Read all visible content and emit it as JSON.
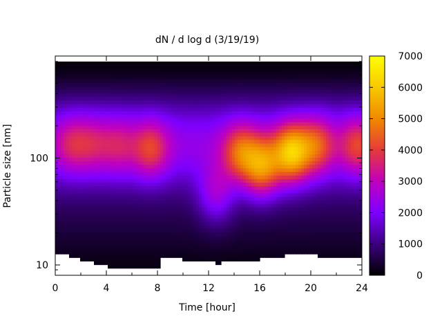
{
  "chart_data": {
    "type": "heatmap",
    "title": "dN / d log d (3/19/19)",
    "xlabel": "Time [hour]",
    "ylabel": "Particle size [nm]",
    "xlim": [
      0,
      24
    ],
    "ylim": [
      8,
      900
    ],
    "y_scale": "log",
    "x_ticks": [
      "0",
      "4",
      "8",
      "12",
      "16",
      "20",
      "24"
    ],
    "y_ticks": [
      "10",
      "100"
    ],
    "colorbar": {
      "range": [
        0,
        7000
      ],
      "ticks": [
        "0",
        "1000",
        "2000",
        "3000",
        "4000",
        "5000",
        "6000",
        "7000"
      ],
      "colormap": [
        "#000000",
        "#3b007f",
        "#7d00ff",
        "#c000c0",
        "#e63a3a",
        "#f08a00",
        "#f8c800",
        "#ffff00"
      ]
    },
    "blobs": [
      {
        "t": 1.3,
        "d": 135,
        "peak": 3400
      },
      {
        "t": 3.0,
        "d": 135,
        "peak": 3200
      },
      {
        "t": 5.0,
        "d": 130,
        "peak": 3300
      },
      {
        "t": 7.5,
        "d": 120,
        "peak": 3900
      },
      {
        "t": 12.6,
        "d": 45,
        "peak": 3600
      },
      {
        "t": 14.5,
        "d": 110,
        "peak": 4300
      },
      {
        "t": 16.2,
        "d": 80,
        "peak": 5000
      },
      {
        "t": 18.5,
        "d": 110,
        "peak": 5500
      },
      {
        "t": 20.5,
        "d": 130,
        "peak": 4100
      },
      {
        "t": 23.7,
        "d": 130,
        "peak": 3900
      }
    ],
    "lower_cutoff": [
      {
        "t": 0.0,
        "d": 12.3
      },
      {
        "t": 1.0,
        "d": 11.6
      },
      {
        "t": 2.0,
        "d": 10.6
      },
      {
        "t": 3.0,
        "d": 10.4
      },
      {
        "t": 3.6,
        "d": 9.8
      },
      {
        "t": 4.2,
        "d": 9.2
      },
      {
        "t": 5.0,
        "d": 9.0
      },
      {
        "t": 6.0,
        "d": 9.0
      },
      {
        "t": 7.0,
        "d": 9.0
      },
      {
        "t": 7.6,
        "d": 9.2
      },
      {
        "t": 8.2,
        "d": 12.0
      },
      {
        "t": 9.2,
        "d": 11.5
      },
      {
        "t": 10.0,
        "d": 10.8
      },
      {
        "t": 11.0,
        "d": 10.8
      },
      {
        "t": 12.0,
        "d": 10.8
      },
      {
        "t": 12.5,
        "d": 10.3
      },
      {
        "t": 13.0,
        "d": 10.7
      },
      {
        "t": 13.8,
        "d": 11.2
      },
      {
        "t": 15.0,
        "d": 11.2
      },
      {
        "t": 16.0,
        "d": 11.4
      },
      {
        "t": 17.0,
        "d": 12.0
      },
      {
        "t": 18.0,
        "d": 12.3
      },
      {
        "t": 19.0,
        "d": 12.3
      },
      {
        "t": 19.5,
        "d": 12.8
      },
      {
        "t": 20.5,
        "d": 12.0
      },
      {
        "t": 21.2,
        "d": 11.5
      },
      {
        "t": 22.0,
        "d": 12.0
      },
      {
        "t": 22.7,
        "d": 11.5
      },
      {
        "t": 23.4,
        "d": 12.0
      },
      {
        "t": 24.0,
        "d": 12.0
      }
    ]
  }
}
